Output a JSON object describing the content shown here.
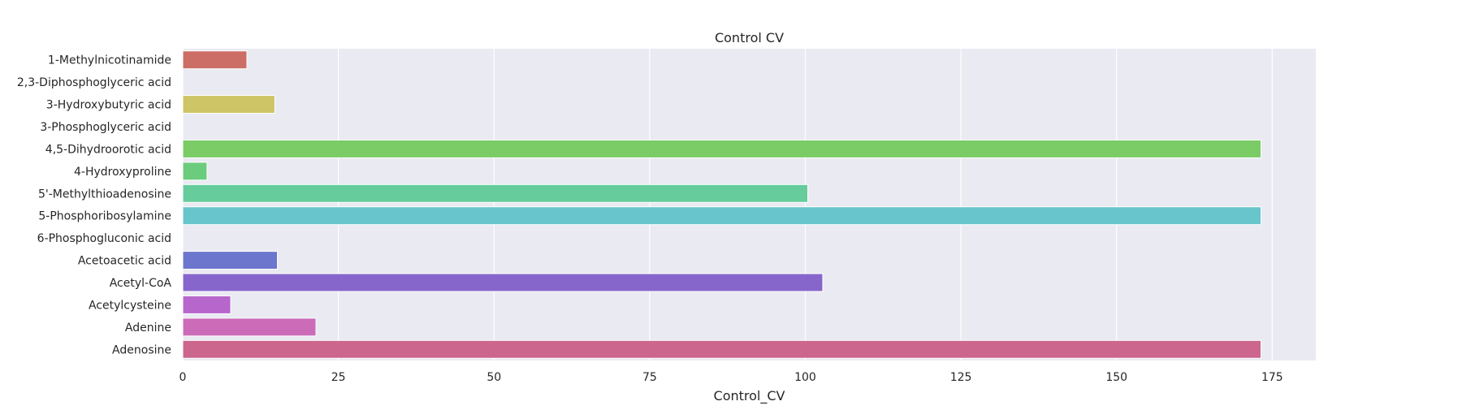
{
  "chart_data": {
    "type": "bar",
    "orientation": "horizontal",
    "title": "Control CV",
    "xlabel": "Control_CV",
    "ylabel": "",
    "xlim": [
      0,
      182
    ],
    "xticks": [
      0,
      25,
      50,
      75,
      100,
      125,
      150,
      175
    ],
    "grid": true,
    "legend": false,
    "categories": [
      "1-Methylnicotinamide",
      "2,3-Diphosphoglyceric acid",
      "3-Hydroxybutyric acid",
      "3-Phosphoglyceric acid",
      "4,5-Dihydroorotic acid",
      "4-Hydroxyproline",
      "5'-Methylthioadenosine",
      "5-Phosphoribosylamine",
      "6-Phosphogluconic acid",
      "Acetoacetic acid",
      "Acetyl-CoA",
      "Acetylcysteine",
      "Adenine",
      "Adenosine"
    ],
    "values": [
      10.3,
      0,
      14.8,
      0,
      173.2,
      3.9,
      100.4,
      173.2,
      0,
      15.2,
      102.8,
      7.7,
      21.4,
      173.2
    ],
    "colors": [
      "#cc6d66",
      "#cca466",
      "#cdc566",
      "#b2cc66",
      "#7bcc66",
      "#6ccc7d",
      "#66cc9c",
      "#68c5cc",
      "#6a9ecc",
      "#6c76cd",
      "#8766cc",
      "#b766cc",
      "#cc6cb9",
      "#cc668c"
    ],
    "background_color": "#eaeaf2",
    "grid_color": "#ffffff"
  }
}
